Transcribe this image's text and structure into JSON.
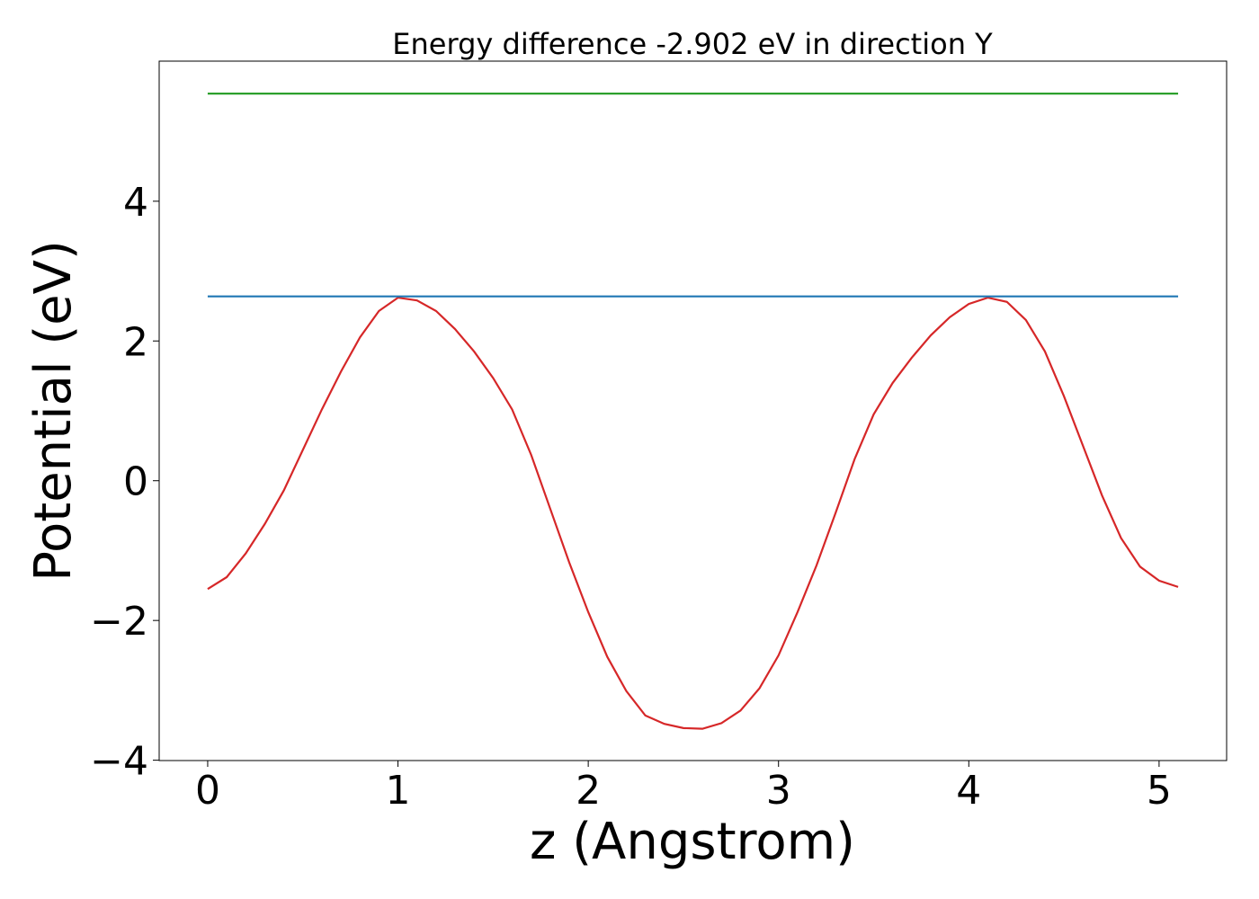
{
  "chart_data": {
    "type": "line",
    "title": "Energy difference -2.902 eV in direction Y",
    "x_label": "z (Angstrom)",
    "y_label": "Potential (eV)",
    "xlim": [
      -0.255,
      5.355
    ],
    "ylim": [
      -4.005,
      6.005
    ],
    "xticks": [
      0,
      1,
      2,
      3,
      4,
      5
    ],
    "yticks": [
      {
        "value": -4,
        "label": "−4"
      },
      {
        "value": -2,
        "label": "−2"
      },
      0,
      2,
      4
    ],
    "series": [
      {
        "color": "#d62728",
        "x": [
          0,
          0.1,
          0.2,
          0.3,
          0.4,
          0.5,
          0.6,
          0.7,
          0.8,
          0.9,
          1.0,
          1.1,
          1.2,
          1.3,
          1.4,
          1.5,
          1.6,
          1.7,
          1.8,
          1.9,
          2.0,
          2.1,
          2.2,
          2.3,
          2.4,
          2.5,
          2.6,
          2.7,
          2.8,
          2.9,
          3.0,
          3.1,
          3.2,
          3.3,
          3.4,
          3.5,
          3.6,
          3.7,
          3.8,
          3.9,
          4.0,
          4.1,
          4.2,
          4.3,
          4.4,
          4.5,
          4.6,
          4.7,
          4.8,
          4.9,
          5.0,
          5.1
        ],
        "values": [
          -1.55,
          -1.38,
          -1.04,
          -0.62,
          -0.14,
          0.44,
          1.02,
          1.56,
          2.05,
          2.43,
          2.62,
          2.58,
          2.43,
          2.17,
          1.85,
          1.47,
          1.02,
          0.37,
          -0.4,
          -1.17,
          -1.88,
          -2.52,
          -3.01,
          -3.36,
          -3.48,
          -3.54,
          -3.55,
          -3.47,
          -3.29,
          -2.97,
          -2.5,
          -1.88,
          -1.21,
          -0.46,
          0.31,
          0.95,
          1.4,
          1.76,
          2.08,
          2.34,
          2.53,
          2.62,
          2.56,
          2.3,
          1.85,
          1.21,
          0.5,
          -0.21,
          -0.82,
          -1.23,
          -1.43,
          -1.52
        ]
      },
      {
        "color": "#1f77b4",
        "x": [
          0,
          5.1
        ],
        "values": [
          2.638,
          2.638
        ]
      },
      {
        "color": "#2ca02c",
        "x": [
          0,
          5.1
        ],
        "values": [
          5.54,
          5.54
        ]
      }
    ]
  }
}
